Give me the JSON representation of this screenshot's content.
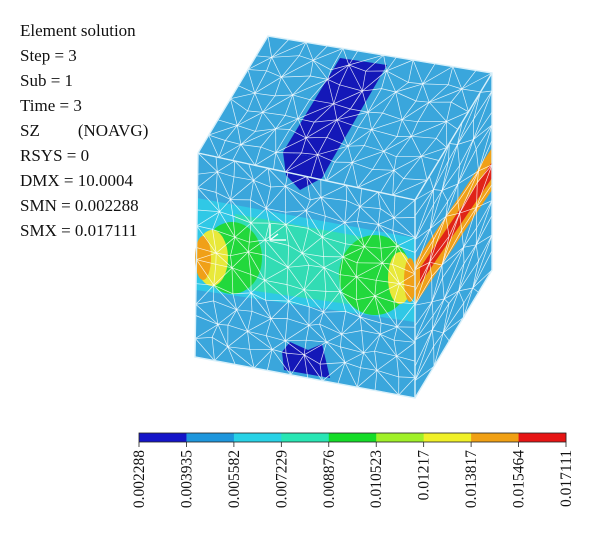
{
  "info": {
    "title": "Element solution",
    "step": "Step = 3",
    "sub": "Sub = 1",
    "time": "Time = 3",
    "result_label": "SZ",
    "result_mode": "(NOAVG)",
    "rsys": "RSYS = 0",
    "dmx": "DMX = 10.0004",
    "smn": "SMN = 0.002288",
    "smx": "SMX = 0.017111"
  },
  "legend": {
    "colors": [
      "#1414c8",
      "#1e96dc",
      "#28d2e6",
      "#28e6b4",
      "#14dc28",
      "#a0f028",
      "#f0f028",
      "#f0a014",
      "#e61414"
    ],
    "labels": [
      "0.002288",
      "0.003935",
      "0.005582",
      "0.007229",
      "0.008876",
      "0.010523",
      "0.01217",
      "0.013817",
      "0.015464",
      "0.017111"
    ]
  },
  "model": {
    "colors": {
      "base": "#3aa6dc",
      "cyan": "#30c8e6",
      "teal": "#32dcb4",
      "green": "#22d83c",
      "yellow": "#e8e83a",
      "orange": "#f0a018",
      "red": "#e02418",
      "navy": "#1418b8",
      "mesh": "#ffffff"
    }
  }
}
